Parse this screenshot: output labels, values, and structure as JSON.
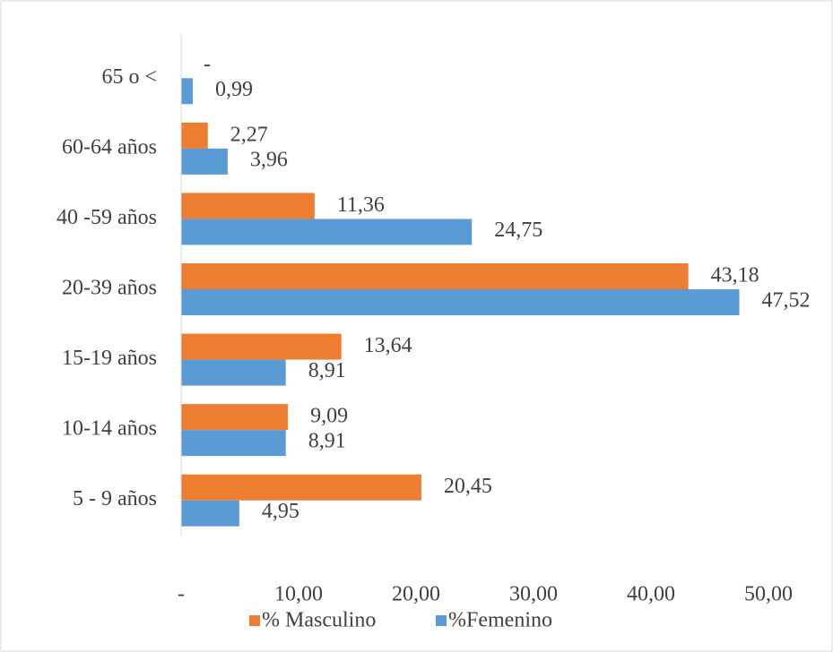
{
  "chart_data": {
    "type": "barh",
    "categories": [
      "65 o <",
      "60-64 años",
      "40 -59 años",
      "20-39 años",
      "15-19 años",
      "10-14 años",
      "5 - 9 años"
    ],
    "series": [
      {
        "name": "% Masculino",
        "color": "#ed7d31",
        "values": [
          0,
          2.27,
          11.36,
          43.18,
          13.64,
          9.09,
          20.45
        ],
        "value_labels": [
          "-",
          "2,27",
          "11,36",
          "43,18",
          "13,64",
          "9,09",
          "20,45"
        ]
      },
      {
        "name": "%Femenino",
        "color": "#5b9bd5",
        "values": [
          0.99,
          3.96,
          24.75,
          47.52,
          8.91,
          8.91,
          4.95
        ],
        "value_labels": [
          "0,99",
          "3,96",
          "24,75",
          "47,52",
          "8,91",
          "8,91",
          "4,95"
        ]
      }
    ],
    "xlim": [
      0,
      50
    ],
    "xticks": [
      {
        "value": 0,
        "label": "-"
      },
      {
        "value": 10,
        "label": "10,00"
      },
      {
        "value": 20,
        "label": "20,00"
      },
      {
        "value": 30,
        "label": "30,00"
      },
      {
        "value": 40,
        "label": "40,00"
      },
      {
        "value": 50,
        "label": "50,00"
      }
    ],
    "grid": false,
    "legend": "bottom"
  }
}
